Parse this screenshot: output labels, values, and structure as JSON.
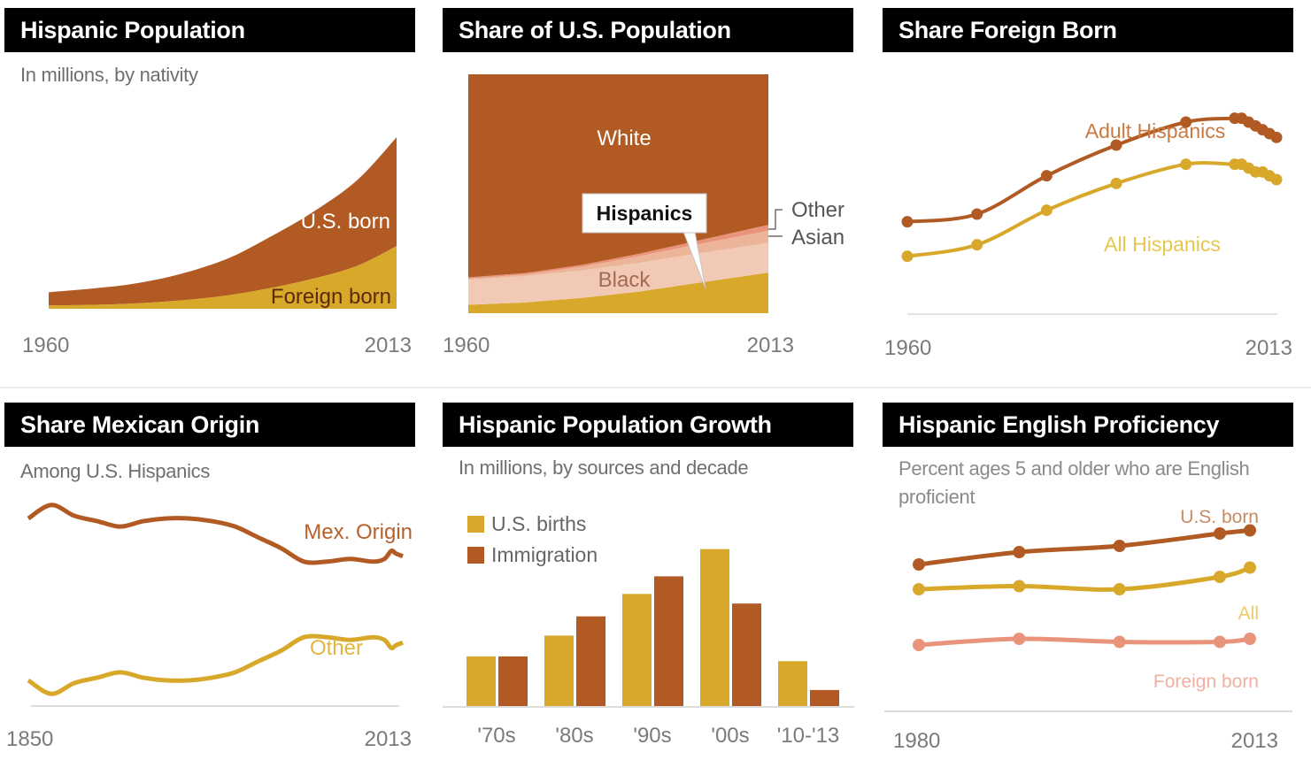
{
  "colors": {
    "dark": "#b15a23",
    "gold": "#d8a82a",
    "light": "#f1c9b4",
    "rose": "#e9937a",
    "header_bg": "#000000",
    "axis_text": "#7a7a7a"
  },
  "chart_data": [
    {
      "id": "hispanic-population",
      "type": "area",
      "title": "Hispanic Population",
      "subtitle": "In millions, by nativity",
      "x_start": "1960",
      "x_end": "2013",
      "series": [
        {
          "name": "U.S. born",
          "label": "U.S. born",
          "values": [
            4,
            5,
            6,
            8,
            11,
            15,
            20,
            26,
            33
          ]
        },
        {
          "name": "Foreign born",
          "label": "Foreign born",
          "values": [
            1,
            1.2,
            1.6,
            2.5,
            4,
            6,
            9,
            13,
            19
          ]
        }
      ],
      "x": [
        1960,
        1967,
        1973,
        1980,
        1987,
        1993,
        2000,
        2007,
        2013
      ]
    },
    {
      "id": "share-us-population",
      "type": "area",
      "title": "Share of U.S. Population",
      "x_start": "1960",
      "x_end": "2013",
      "ylim": [
        0,
        100
      ],
      "x": [
        1960,
        1970,
        1980,
        1990,
        2000,
        2013
      ],
      "series": [
        {
          "name": "Hispanics",
          "label": "Hispanics",
          "values": [
            3.5,
            4.5,
            6.4,
            9.0,
            12.5,
            17.0
          ]
        },
        {
          "name": "Black",
          "label": "Black",
          "values": [
            10.5,
            11.0,
            11.5,
            12.0,
            12.3,
            12.4
          ]
        },
        {
          "name": "Asian",
          "label": "Asian",
          "values": [
            0.5,
            0.7,
            1.5,
            2.8,
            3.8,
            5.1
          ]
        },
        {
          "name": "Other",
          "label": "Other",
          "values": [
            0.5,
            0.6,
            0.8,
            1.0,
            1.5,
            2.5
          ]
        },
        {
          "name": "White",
          "label": "White",
          "values": [
            85.0,
            83.2,
            79.8,
            75.2,
            69.9,
            63.0
          ]
        }
      ]
    },
    {
      "id": "share-foreign-born",
      "type": "line",
      "title": "Share Foreign Born",
      "x_start": "1960",
      "x_end": "2013",
      "x": [
        1960,
        1970,
        1980,
        1990,
        2000,
        2007,
        2008,
        2009,
        2010,
        2011,
        2012,
        2013
      ],
      "ylim": [
        0,
        60
      ],
      "series": [
        {
          "name": "Adult Hispanics",
          "label": "Adult Hispanics",
          "values": [
            25,
            27,
            37,
            45,
            51,
            52,
            52,
            51,
            50,
            49,
            48,
            47
          ]
        },
        {
          "name": "All Hispanics",
          "label": "All Hispanics",
          "values": [
            16,
            19,
            28,
            35,
            40,
            40,
            40,
            39,
            38,
            38,
            37,
            36
          ]
        }
      ]
    },
    {
      "id": "share-mexican-origin",
      "type": "line",
      "title": "Share Mexican Origin",
      "subtitle": "Among U.S. Hispanics",
      "x_start": "1850",
      "x_end": "2013",
      "ylim": [
        0,
        100
      ],
      "x": [
        1850,
        1860,
        1870,
        1880,
        1890,
        1900,
        1910,
        1920,
        1930,
        1940,
        1950,
        1960,
        1970,
        1980,
        1990,
        2000,
        2005,
        2008,
        2010,
        2013
      ],
      "series": [
        {
          "name": "Mex. Origin",
          "label": "Mex. Origin",
          "values": [
            80,
            85,
            81,
            79,
            77,
            79,
            80,
            80,
            79,
            77,
            73,
            69,
            64,
            64,
            65,
            64,
            65,
            68,
            67,
            66
          ]
        },
        {
          "name": "Other",
          "label": "Other",
          "values": [
            20,
            15,
            19,
            21,
            23,
            21,
            20,
            20,
            21,
            23,
            27,
            31,
            36,
            36,
            35,
            36,
            35,
            32,
            33,
            34
          ]
        }
      ]
    },
    {
      "id": "hispanic-population-growth",
      "type": "bar",
      "title": "Hispanic Population Growth",
      "subtitle": "In millions, by sources and decade",
      "categories": [
        "'70s",
        "'80s",
        "'90s",
        "'00s",
        "'10-'13"
      ],
      "ylim": [
        0,
        10
      ],
      "series": [
        {
          "name": "U.S. births",
          "label": "U.S. births",
          "values": [
            3.1,
            4.4,
            7.0,
            9.8,
            2.8
          ]
        },
        {
          "name": "Immigration",
          "label": "Immigration",
          "values": [
            3.1,
            5.6,
            8.1,
            6.4,
            1.0
          ]
        }
      ]
    },
    {
      "id": "hispanic-english-proficiency",
      "type": "line",
      "title": "Hispanic English Proficiency",
      "subtitle": "Percent ages 5 and older who are English proficient",
      "x_start": "1980",
      "x_end": "2013",
      "ylim": [
        0,
        100
      ],
      "x": [
        1980,
        1990,
        2000,
        2010,
        2013
      ],
      "series": [
        {
          "name": "U.S. born",
          "label": "U.S. born",
          "values": [
            86,
            88,
            89,
            91,
            91.5
          ]
        },
        {
          "name": "All",
          "label": "All",
          "values": [
            82,
            82.5,
            82,
            84,
            85.5
          ]
        },
        {
          "name": "Foreign born",
          "label": "Foreign born",
          "values": [
            73,
            74,
            73.5,
            73.5,
            74
          ]
        }
      ]
    }
  ]
}
